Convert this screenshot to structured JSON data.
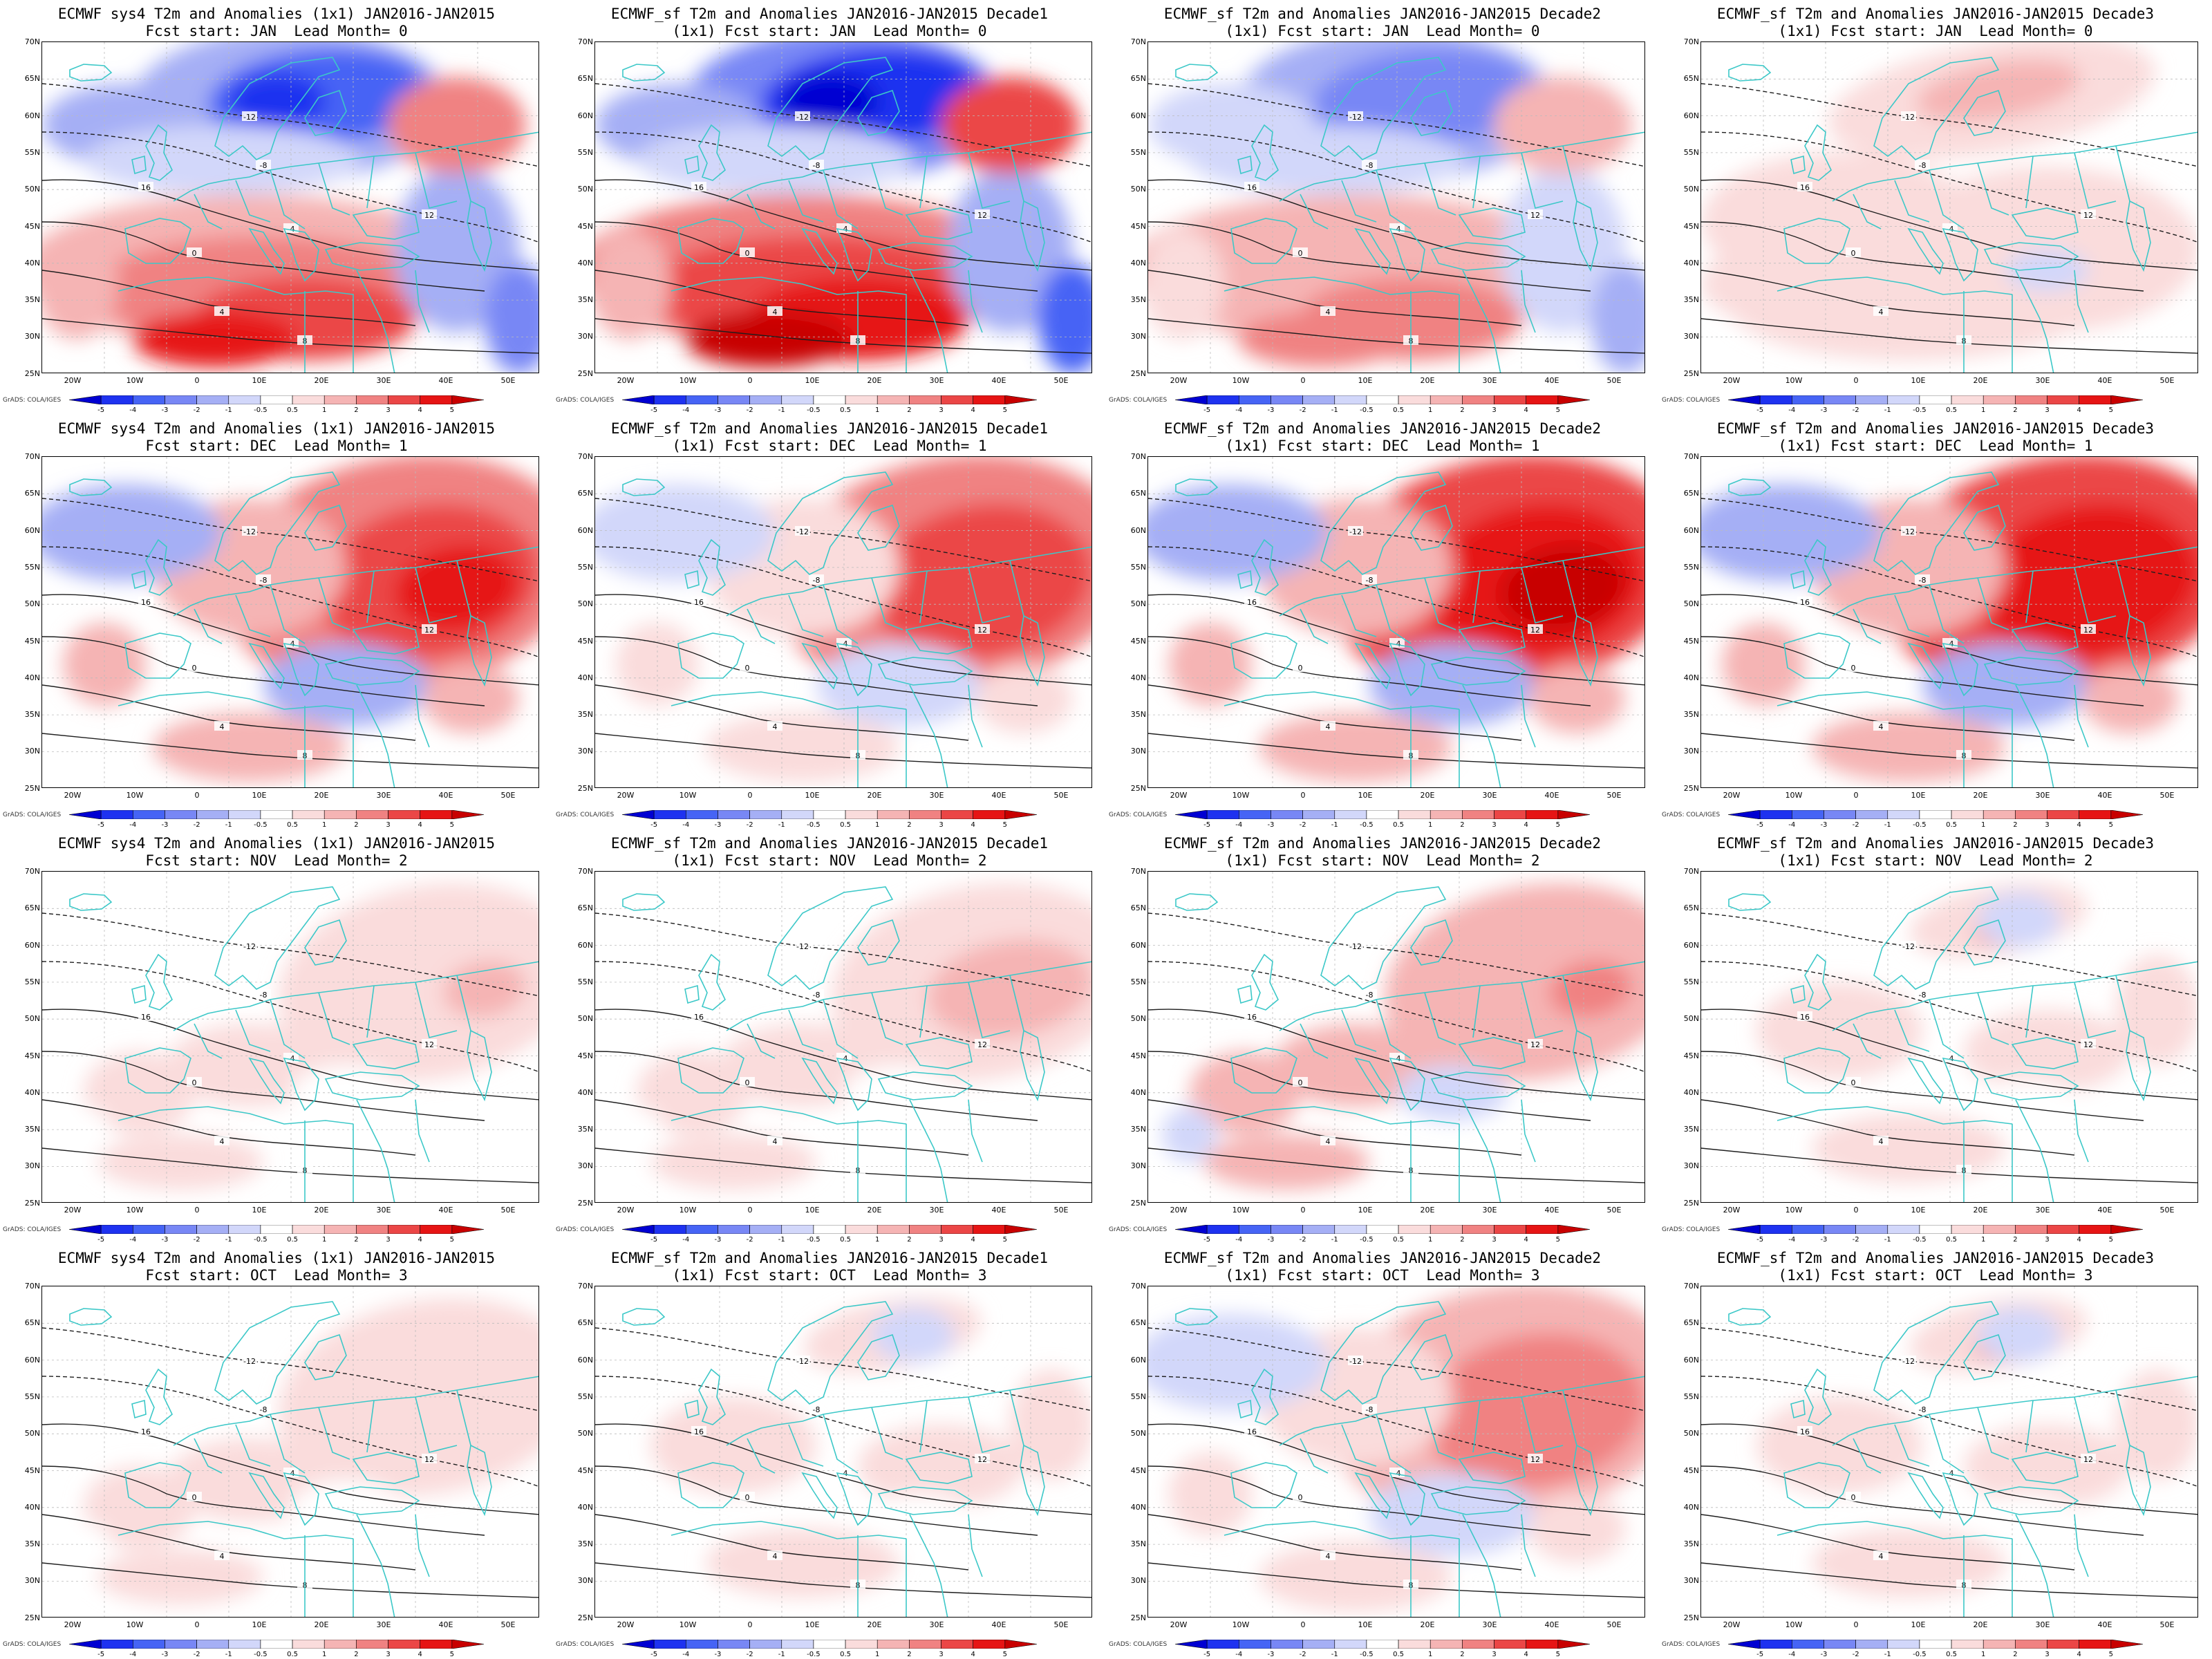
{
  "figure": {
    "panels": [
      {
        "title1": "ECMWF sys4 T2m and Anomalies (1x1) JAN2016-JAN2015",
        "title2": "Fcst start: JAN  Lead Month= 0",
        "pattern": "north_cold_south_warm",
        "intensity": 0.8
      },
      {
        "title1": "ECMWF_sf T2m and Anomalies JAN2016-JAN2015 Decade1",
        "title2": "(1x1) Fcst start: JAN  Lead Month= 0",
        "pattern": "north_cold_south_warm",
        "intensity": 1.0
      },
      {
        "title1": "ECMWF_sf T2m and Anomalies JAN2016-JAN2015 Decade2",
        "title2": "(1x1) Fcst start: JAN  Lead Month= 0",
        "pattern": "north_cold_south_warm",
        "intensity": 0.55
      },
      {
        "title1": "ECMWF_sf T2m and Anomalies JAN2016-JAN2015 Decade3",
        "title2": "(1x1) Fcst start: JAN  Lead Month= 0",
        "pattern": "mostly_warm",
        "intensity": 0.4
      },
      {
        "title1": "ECMWF sys4 T2m and Anomalies (1x1) JAN2016-JAN2015",
        "title2": "Fcst start: DEC  Lead Month= 1",
        "pattern": "east_warm",
        "intensity": 0.85
      },
      {
        "title1": "ECMWF_sf T2m and Anomalies JAN2016-JAN2015 Decade1",
        "title2": "(1x1) Fcst start: DEC  Lead Month= 1",
        "pattern": "east_warm",
        "intensity": 0.7
      },
      {
        "title1": "ECMWF_sf T2m and Anomalies JAN2016-JAN2015 Decade2",
        "title2": "(1x1) Fcst start: DEC  Lead Month= 1",
        "pattern": "east_warm",
        "intensity": 1.0
      },
      {
        "title1": "ECMWF_sf T2m and Anomalies JAN2016-JAN2015 Decade3",
        "title2": "(1x1) Fcst start: DEC  Lead Month= 1",
        "pattern": "east_warm",
        "intensity": 0.9
      },
      {
        "title1": "ECMWF sys4 T2m and Anomalies (1x1) JAN2016-JAN2015",
        "title2": "Fcst start: NOV  Lead Month= 2",
        "pattern": "weak_east_warm",
        "intensity": 0.45
      },
      {
        "title1": "ECMWF_sf T2m and Anomalies JAN2016-JAN2015 Decade1",
        "title2": "(1x1) Fcst start: NOV  Lead Month= 2",
        "pattern": "weak_east_warm",
        "intensity": 0.5
      },
      {
        "title1": "ECMWF_sf T2m and Anomalies JAN2016-JAN2015 Decade2",
        "title2": "(1x1) Fcst start: NOV  Lead Month= 2",
        "pattern": "weak_east_warm",
        "intensity": 0.75
      },
      {
        "title1": "ECMWF_sf T2m and Anomalies JAN2016-JAN2015 Decade3",
        "title2": "(1x1) Fcst start: NOV  Lead Month= 2",
        "pattern": "mixed_weak",
        "intensity": 0.4
      },
      {
        "title1": "ECMWF sys4 T2m and Anomalies (1x1) JAN2016-JAN2015",
        "title2": "Fcst start: OCT  Lead Month= 3",
        "pattern": "weak_east_warm",
        "intensity": 0.35
      },
      {
        "title1": "ECMWF_sf T2m and Anomalies JAN2016-JAN2015 Decade1",
        "title2": "(1x1) Fcst start: OCT  Lead Month= 3",
        "pattern": "mixed_weak",
        "intensity": 0.35
      },
      {
        "title1": "ECMWF_sf T2m and Anomalies JAN2016-JAN2015 Decade2",
        "title2": "(1x1) Fcst start: OCT  Lead Month= 3",
        "pattern": "east_warm",
        "intensity": 0.55
      },
      {
        "title1": "ECMWF_sf T2m and Anomalies JAN2016-JAN2015 Decade3",
        "title2": "(1x1) Fcst start: OCT  Lead Month= 3",
        "pattern": "mixed_weak",
        "intensity": 0.45
      }
    ],
    "lat_labels": [
      "70N",
      "65N",
      "60N",
      "55N",
      "50N",
      "45N",
      "40N",
      "35N",
      "30N",
      "25N"
    ],
    "lon_labels": [
      "20W",
      "10W",
      "0",
      "10E",
      "20E",
      "30E",
      "40E",
      "50E"
    ],
    "colorbar": {
      "levels": [
        "-5",
        "-4",
        "-3",
        "-2",
        "-1",
        "-0.5",
        "0.5",
        "1",
        "2",
        "3",
        "4",
        "5"
      ],
      "colors": [
        "#0000d2",
        "#1e32f0",
        "#4664f5",
        "#7887f5",
        "#a5aff5",
        "#d2d7fa",
        "#ffffff",
        "#fadcdc",
        "#f5b4b4",
        "#f08282",
        "#eb4646",
        "#e61414",
        "#c80000"
      ]
    },
    "credit": "GrADS: COLA/IGES",
    "contour_labels": [
      "-12",
      "-8",
      "-4",
      "0",
      "4",
      "8",
      "12",
      "16"
    ],
    "coast_color": "#3cc8c8",
    "contour_color": "#1e1e1e"
  }
}
